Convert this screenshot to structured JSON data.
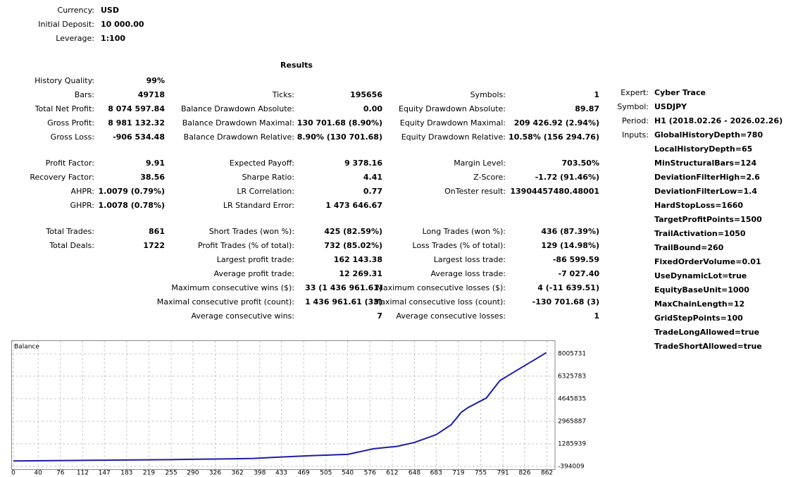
{
  "header": {
    "rows": [
      {
        "label": "Currency:",
        "value": "USD"
      },
      {
        "label": "Initial Deposit:",
        "value": "10 000.00"
      },
      {
        "label": "Leverage:",
        "value": "1:100"
      }
    ]
  },
  "results": {
    "title": "Results",
    "rows": [
      [
        {
          "label": "History Quality:",
          "value": "99%"
        },
        null,
        null
      ],
      [
        {
          "label": "Bars:",
          "value": "49718"
        },
        {
          "label": "Ticks:",
          "value": "195656"
        },
        {
          "label": "Symbols:",
          "value": "1"
        }
      ],
      [
        {
          "label": "Total Net Profit:",
          "value": "8 074 597.84"
        },
        {
          "label": "Balance Drawdown Absolute:",
          "value": "0.00"
        },
        {
          "label": "Equity Drawdown Absolute:",
          "value": "89.87"
        }
      ],
      [
        {
          "label": "Gross Profit:",
          "value": "8 981 132.32"
        },
        {
          "label": "Balance Drawdown Maximal:",
          "value": "130 701.68 (8.90%)"
        },
        {
          "label": "Equity Drawdown Maximal:",
          "value": "209 426.92 (2.94%)"
        }
      ],
      [
        {
          "label": "Gross Loss:",
          "value": "-906 534.48"
        },
        {
          "label": "Balance Drawdown Relative:",
          "value": "8.90% (130 701.68)"
        },
        {
          "label": "Equity Drawdown Relative:",
          "value": "10.58% (156 294.76)"
        }
      ],
      [
        {
          "label": "Profit Factor:",
          "value": "9.91"
        },
        {
          "label": "Expected Payoff:",
          "value": "9 378.16"
        },
        {
          "label": "Margin Level:",
          "value": "703.50%"
        }
      ],
      [
        {
          "label": "Recovery Factor:",
          "value": "38.56"
        },
        {
          "label": "Sharpe Ratio:",
          "value": "4.41"
        },
        {
          "label": "Z-Score:",
          "value": "-1.72 (91.46%)"
        }
      ],
      [
        {
          "label": "AHPR:",
          "value": "1.0079 (0.79%)"
        },
        {
          "label": "LR Correlation:",
          "value": "0.77"
        },
        {
          "label": "OnTester result:",
          "value": "13904457480.48001"
        }
      ],
      [
        {
          "label": "GHPR:",
          "value": "1.0078 (0.78%)"
        },
        {
          "label": "LR Standard Error:",
          "value": "1 473 646.67"
        },
        null
      ],
      [
        {
          "label": "Total Trades:",
          "value": "861"
        },
        {
          "label": "Short Trades (won %):",
          "value": "425 (82.59%)"
        },
        {
          "label": "Long Trades (won %):",
          "value": "436 (87.39%)"
        }
      ],
      [
        {
          "label": "Total Deals:",
          "value": "1722"
        },
        {
          "label": "Profit Trades (% of total):",
          "value": "732 (85.02%)"
        },
        {
          "label": "Loss Trades (% of total):",
          "value": "129 (14.98%)"
        }
      ],
      [
        null,
        {
          "label": "Largest profit trade:",
          "value": "162 143.38"
        },
        {
          "label": "Largest loss trade:",
          "value": "-86 599.59"
        }
      ],
      [
        null,
        {
          "label": "Average profit trade:",
          "value": "12 269.31"
        },
        {
          "label": "Average loss trade:",
          "value": "-7 027.40"
        }
      ],
      [
        null,
        {
          "label": "Maximum consecutive wins ($):",
          "value": "33 (1 436 961.61)"
        },
        {
          "label": "Maximum consecutive losses ($):",
          "value": "4 (-11 639.51)"
        }
      ],
      [
        null,
        {
          "label": "Maximal consecutive profit (count):",
          "value": "1 436 961.61 (33)"
        },
        {
          "label": "Maximal consecutive loss (count):",
          "value": "-130 701.68 (3)"
        }
      ],
      [
        null,
        {
          "label": "Average consecutive wins:",
          "value": "7"
        },
        {
          "label": "Average consecutive losses:",
          "value": "1"
        }
      ]
    ]
  },
  "expert": {
    "rows": [
      {
        "label": "Expert:",
        "value": "Cyber Trace"
      },
      {
        "label": "Symbol:",
        "value": "USDJPY"
      },
      {
        "label": "Period:",
        "value": "H1 (2018.02.26 - 2026.02.26)"
      }
    ],
    "inputs_label": "Inputs:",
    "inputs": [
      "GlobalHistoryDepth=780",
      "LocalHistoryDepth=65",
      "MinStructuralBars=124",
      "DeviationFilterHigh=2.6",
      "DeviationFilterLow=1.4",
      "HardStopLoss=1660",
      "TargetProfitPoints=1500",
      "TrailActivation=1050",
      "TrailBound=260",
      "FixedOrderVolume=0.01",
      "UseDynamicLot=true",
      "EquityBaseUnit=1000",
      "MaxChainLength=12",
      "GridStepPoints=100",
      "TradeLongAllowed=true",
      "TradeShortAllowed=true"
    ]
  },
  "chart_data": {
    "type": "line",
    "title": "Balance",
    "x": [
      0,
      50,
      100,
      150,
      200,
      250,
      300,
      350,
      388,
      430,
      480,
      540,
      582,
      620,
      648,
      683,
      707,
      724,
      735,
      764,
      786,
      820,
      843,
      861
    ],
    "series": [
      {
        "name": "Balance",
        "color": "#1c1ca8",
        "values": [
          10000,
          30000,
          50000,
          70000,
          90000,
          110000,
          140000,
          170000,
          200000,
          300000,
          400000,
          500000,
          920000,
          1100000,
          1390000,
          1970000,
          2700000,
          3650000,
          4000000,
          4700000,
          6000000,
          6950000,
          7580000,
          8084598
        ]
      }
    ],
    "xlim": [
      0,
      875
    ],
    "xticks": [
      0,
      40,
      76,
      112,
      147,
      183,
      219,
      255,
      290,
      326,
      362,
      398,
      433,
      469,
      505,
      540,
      576,
      612,
      648,
      683,
      719,
      755,
      791,
      826,
      862
    ],
    "ylim": [
      -660000,
      9000000
    ],
    "yticks": [
      -394009,
      1285939,
      2965887,
      4645835,
      6325783,
      8005731
    ],
    "grid": true
  }
}
